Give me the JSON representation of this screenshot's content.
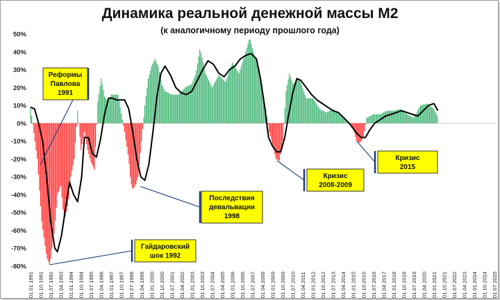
{
  "chart_data": {
    "type": "bar",
    "title": "Динамика реальной денежной массы М2",
    "subtitle": "(к аналогичному периоду прошлого года)",
    "xlabel": "",
    "ylabel": "",
    "ylim": [
      -0.8,
      0.5
    ],
    "y_ticks": [
      "-80%",
      "-70%",
      "-60%",
      "-50%",
      "-40%",
      "-30%",
      "-20%",
      "-10%",
      "0%",
      "10%",
      "20%",
      "30%",
      "40%",
      "50%"
    ],
    "y_tick_values": [
      -0.8,
      -0.7,
      -0.6,
      -0.5,
      -0.4,
      -0.3,
      -0.2,
      -0.1,
      0,
      0.1,
      0.2,
      0.3,
      0.4,
      0.5
    ],
    "x_ticks": [
      "01.01.1991",
      "01.10.1991",
      "01.07.1992",
      "01.04.1993",
      "01.01.1994",
      "01.10.1994",
      "01.07.1995",
      "01.04.1996",
      "01.01.1997",
      "01.10.1997",
      "01.07.1998",
      "01.04.1999",
      "01.01.2000",
      "01.10.2000",
      "01.07.2001",
      "01.04.2002",
      "01.01.2003",
      "01.10.2003",
      "01.07.2004",
      "01.04.2005",
      "01.01.2006",
      "01.10.2006",
      "01.07.2007",
      "01.04.2008",
      "01.01.2009",
      "01.10.2009",
      "01.07.2010",
      "01.04.2011",
      "01.01.2012",
      "01.10.2012",
      "01.07.2013",
      "01.04.2014",
      "01.01.2015",
      "01.10.2015",
      "01.07.2016",
      "01.04.2017",
      "01.01.2018",
      "01.10.2018",
      "01.07.2019",
      "01.04.2020",
      "01.01.2021",
      "01.10.2021",
      "01.07.2022",
      "01.04.2023",
      "01.01.2024",
      "01.10.2024",
      "01.07.2025"
    ],
    "x_range": [
      1991.0,
      2025.6
    ],
    "bar_colors": {
      "positive": "#3cb371",
      "negative": "#ff2b2b"
    },
    "trend_color": "#000000",
    "series": [
      {
        "kind": "bars",
        "x": [
          1991.0,
          1991.5,
          1991.83,
          1992.2,
          1992.45,
          1992.55,
          1992.75,
          1993.0,
          1993.25,
          1993.5,
          1993.8,
          1994.0,
          1994.25,
          1994.5,
          1994.75,
          1995.0,
          1995.25,
          1995.5,
          1995.75,
          1996.0,
          1996.25,
          1996.5,
          1996.75,
          1997.0,
          1997.5,
          1998.0,
          1998.3,
          1998.45,
          1998.6,
          1998.8,
          1999.0,
          1999.25,
          1999.5,
          1999.75,
          2000.0,
          2000.25,
          2000.5,
          2000.75,
          2001.0,
          2001.5,
          2002.0,
          2002.5,
          2003.0,
          2003.3,
          2003.6,
          2004.0,
          2004.5,
          2005.0,
          2005.5,
          2006.0,
          2006.5,
          2007.0,
          2007.3,
          2007.5,
          2007.75,
          2008.0,
          2008.25,
          2008.5,
          2008.75,
          2009.0,
          2009.25,
          2009.5,
          2009.75,
          2010.0,
          2010.25,
          2010.5,
          2011.0,
          2011.5,
          2012.0,
          2012.5,
          2013.0,
          2013.5,
          2014.0,
          2014.5,
          2015.0,
          2015.25,
          2015.5,
          2015.75,
          2016.0,
          2016.5,
          2017.0,
          2017.5,
          2018.0,
          2018.5,
          2019.0,
          2019.5,
          2020.0,
          2020.5,
          2021.0,
          2021.3
        ],
        "y": [
          0.09,
          -0.2,
          -0.55,
          -0.75,
          -0.8,
          -0.72,
          -0.62,
          -0.4,
          -0.35,
          -0.55,
          -0.45,
          -0.3,
          -0.2,
          0.07,
          -0.15,
          -0.05,
          -0.15,
          -0.22,
          -0.26,
          0.12,
          0.25,
          0.15,
          0.12,
          0.16,
          0.16,
          -0.05,
          -0.2,
          -0.33,
          -0.37,
          -0.35,
          -0.3,
          -0.1,
          0.1,
          0.25,
          0.32,
          0.36,
          0.32,
          0.22,
          0.18,
          0.16,
          0.16,
          0.2,
          0.22,
          0.28,
          0.42,
          0.28,
          0.2,
          0.27,
          0.23,
          0.34,
          0.28,
          0.4,
          0.48,
          0.42,
          0.36,
          0.28,
          0.18,
          0.08,
          -0.05,
          -0.12,
          -0.2,
          -0.21,
          -0.1,
          0.18,
          0.28,
          0.22,
          0.25,
          0.14,
          0.14,
          0.08,
          0.06,
          0.08,
          0.05,
          0.02,
          -0.03,
          -0.1,
          -0.11,
          -0.08,
          0.03,
          0.05,
          0.05,
          0.07,
          0.07,
          0.08,
          0.05,
          0.03,
          0.1,
          0.11,
          0.08,
          0.03
        ]
      },
      {
        "kind": "trend",
        "x": [
          1991.0,
          1991.3,
          1991.6,
          1991.9,
          1992.2,
          1992.5,
          1992.8,
          1993.0,
          1993.3,
          1993.6,
          1993.9,
          1994.2,
          1994.5,
          1994.8,
          1995.0,
          1995.3,
          1995.6,
          1995.9,
          1996.2,
          1996.5,
          1996.8,
          1997.1,
          1997.4,
          1997.7,
          1998.0,
          1998.3,
          1998.6,
          1998.9,
          1999.2,
          1999.5,
          1999.8,
          2000.1,
          2000.4,
          2000.7,
          2001.0,
          2001.4,
          2001.8,
          2002.2,
          2002.6,
          2003.0,
          2003.4,
          2003.8,
          2004.2,
          2004.6,
          2005.0,
          2005.4,
          2005.8,
          2006.2,
          2006.6,
          2007.0,
          2007.4,
          2007.8,
          2008.1,
          2008.4,
          2008.7,
          2009.0,
          2009.3,
          2009.6,
          2009.9,
          2010.2,
          2010.5,
          2010.8,
          2011.1,
          2011.5,
          2011.9,
          2012.3,
          2012.7,
          2013.1,
          2013.5,
          2013.9,
          2014.3,
          2014.7,
          2015.0,
          2015.3,
          2015.6,
          2015.9,
          2016.2,
          2016.6,
          2017.0,
          2017.4,
          2017.8,
          2018.2,
          2018.6,
          2019.0,
          2019.4,
          2019.8,
          2020.2,
          2020.6,
          2021.0,
          2021.3
        ],
        "y": [
          0.09,
          0.08,
          0.0,
          -0.1,
          -0.3,
          -0.55,
          -0.7,
          -0.72,
          -0.63,
          -0.48,
          -0.33,
          -0.4,
          -0.44,
          -0.3,
          -0.08,
          -0.08,
          -0.17,
          -0.19,
          -0.09,
          0.05,
          0.14,
          0.14,
          0.13,
          0.13,
          0.13,
          0.08,
          -0.05,
          -0.2,
          -0.3,
          -0.32,
          -0.23,
          -0.05,
          0.15,
          0.28,
          0.32,
          0.27,
          0.2,
          0.17,
          0.16,
          0.18,
          0.24,
          0.3,
          0.35,
          0.33,
          0.28,
          0.26,
          0.3,
          0.32,
          0.36,
          0.38,
          0.39,
          0.36,
          0.25,
          0.1,
          -0.08,
          -0.13,
          -0.16,
          -0.16,
          -0.08,
          0.05,
          0.17,
          0.25,
          0.24,
          0.2,
          0.16,
          0.13,
          0.11,
          0.09,
          0.07,
          0.06,
          0.03,
          0.0,
          -0.03,
          -0.06,
          -0.08,
          -0.08,
          -0.04,
          0.0,
          0.02,
          0.04,
          0.05,
          0.06,
          0.07,
          0.06,
          0.05,
          0.04,
          0.07,
          0.1,
          0.11,
          0.07
        ]
      }
    ],
    "annotations": [
      {
        "id": "reforms",
        "lines": [
          "Реформы",
          "Павлова",
          "1991"
        ],
        "x": 1991.45,
        "y": -0.25
      },
      {
        "id": "gaidar",
        "lines": [
          "Гайдаровский",
          "шок 1992"
        ],
        "x": 1992.45,
        "y": -0.8
      },
      {
        "id": "devaluation",
        "lines": [
          "Последствия",
          "девальвации",
          "1998"
        ],
        "x": 1998.6,
        "y": -0.36
      },
      {
        "id": "crisis2008",
        "lines": [
          "Кризис",
          "2008-2009"
        ],
        "x": 2009.2,
        "y": -0.2
      },
      {
        "id": "crisis2015",
        "lines": [
          "Кризис",
          "2015"
        ],
        "x": 2015.15,
        "y": -0.1
      }
    ]
  }
}
